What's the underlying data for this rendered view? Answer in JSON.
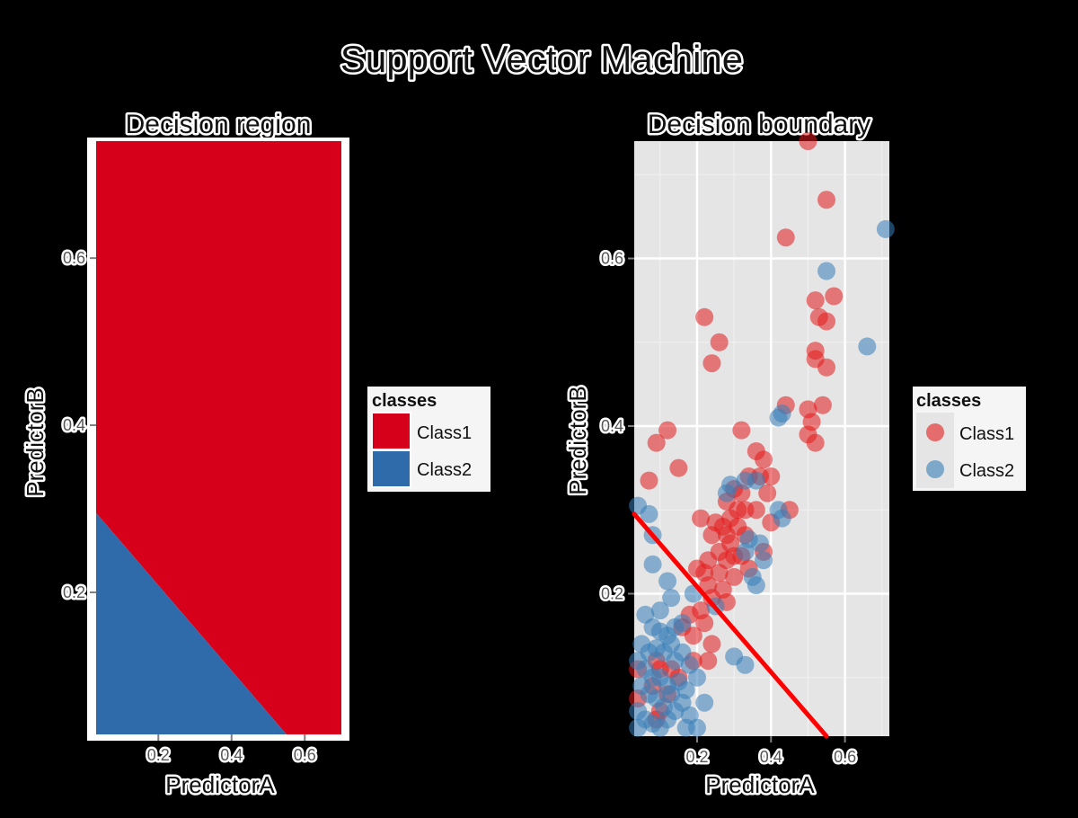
{
  "figure": {
    "title": "Support Vector Machine"
  },
  "chart_data": [
    {
      "type": "area",
      "title": "Decision region",
      "xlabel": "PredictorA",
      "ylabel": "PredictorB",
      "xlim": [
        0.03,
        0.7
      ],
      "ylim": [
        0.03,
        0.74
      ],
      "x_ticks": [
        0.2,
        0.4,
        0.6
      ],
      "y_ticks": [
        0.2,
        0.4,
        0.6
      ],
      "x_tick_labels": [
        "0.2",
        "0.4",
        "0.6"
      ],
      "y_tick_labels": [
        "0.2",
        "0.4",
        "0.6"
      ],
      "grid": false,
      "legend": {
        "title": "classes",
        "position": "right",
        "entries": [
          {
            "name": "Class1",
            "color": "#d7001b"
          },
          {
            "name": "Class2",
            "color": "#2f6aab"
          }
        ]
      },
      "regions": [
        {
          "name": "Class1",
          "color": "#d7001b",
          "polygon": [
            [
              0.03,
              0.295
            ],
            [
              0.03,
              0.74
            ],
            [
              0.7,
              0.74
            ],
            [
              0.7,
              0.03
            ],
            [
              0.55,
              0.03
            ]
          ]
        },
        {
          "name": "Class2",
          "color": "#2f6aab",
          "polygon": [
            [
              0.03,
              0.03
            ],
            [
              0.03,
              0.295
            ],
            [
              0.55,
              0.03
            ]
          ]
        }
      ]
    },
    {
      "type": "scatter",
      "title": "Decision boundary",
      "xlabel": "PredictorA",
      "ylabel": "PredictorB",
      "xlim": [
        0.03,
        0.72
      ],
      "ylim": [
        0.03,
        0.74
      ],
      "x_ticks": [
        0.2,
        0.4,
        0.6
      ],
      "y_ticks": [
        0.2,
        0.4,
        0.6
      ],
      "x_tick_labels": [
        "0.2",
        "0.4",
        "0.6"
      ],
      "y_tick_labels": [
        "0.2",
        "0.4",
        "0.6"
      ],
      "grid": true,
      "legend": {
        "title": "classes",
        "position": "right",
        "entries": [
          {
            "name": "Class1",
            "color": "#e41a1c"
          },
          {
            "name": "Class2",
            "color": "#377eb8"
          }
        ]
      },
      "boundary_line": {
        "color": "#ff0000",
        "points": [
          [
            0.03,
            0.295
          ],
          [
            0.55,
            0.03
          ]
        ]
      },
      "series": [
        {
          "name": "Class1",
          "color": "#e41a1c",
          "points": [
            [
              0.5,
              0.74
            ],
            [
              0.55,
              0.67
            ],
            [
              0.44,
              0.625
            ],
            [
              0.57,
              0.555
            ],
            [
              0.52,
              0.55
            ],
            [
              0.53,
              0.53
            ],
            [
              0.55,
              0.525
            ],
            [
              0.22,
              0.53
            ],
            [
              0.26,
              0.5
            ],
            [
              0.24,
              0.475
            ],
            [
              0.52,
              0.49
            ],
            [
              0.52,
              0.48
            ],
            [
              0.55,
              0.47
            ],
            [
              0.44,
              0.425
            ],
            [
              0.5,
              0.42
            ],
            [
              0.54,
              0.425
            ],
            [
              0.51,
              0.405
            ],
            [
              0.5,
              0.39
            ],
            [
              0.52,
              0.38
            ],
            [
              0.12,
              0.395
            ],
            [
              0.09,
              0.38
            ],
            [
              0.32,
              0.395
            ],
            [
              0.07,
              0.335
            ],
            [
              0.15,
              0.35
            ],
            [
              0.36,
              0.37
            ],
            [
              0.37,
              0.34
            ],
            [
              0.34,
              0.34
            ],
            [
              0.4,
              0.34
            ],
            [
              0.38,
              0.36
            ],
            [
              0.3,
              0.325
            ],
            [
              0.32,
              0.32
            ],
            [
              0.28,
              0.31
            ],
            [
              0.31,
              0.3
            ],
            [
              0.29,
              0.29
            ],
            [
              0.33,
              0.3
            ],
            [
              0.36,
              0.3
            ],
            [
              0.39,
              0.32
            ],
            [
              0.45,
              0.3
            ],
            [
              0.21,
              0.29
            ],
            [
              0.25,
              0.285
            ],
            [
              0.27,
              0.28
            ],
            [
              0.31,
              0.28
            ],
            [
              0.24,
              0.27
            ],
            [
              0.28,
              0.27
            ],
            [
              0.33,
              0.27
            ],
            [
              0.4,
              0.285
            ],
            [
              0.29,
              0.26
            ],
            [
              0.26,
              0.25
            ],
            [
              0.3,
              0.245
            ],
            [
              0.23,
              0.24
            ],
            [
              0.28,
              0.24
            ],
            [
              0.32,
              0.245
            ],
            [
              0.38,
              0.25
            ],
            [
              0.2,
              0.23
            ],
            [
              0.22,
              0.225
            ],
            [
              0.26,
              0.225
            ],
            [
              0.3,
              0.22
            ],
            [
              0.34,
              0.23
            ],
            [
              0.23,
              0.21
            ],
            [
              0.27,
              0.205
            ],
            [
              0.24,
              0.195
            ],
            [
              0.28,
              0.19
            ],
            [
              0.21,
              0.18
            ],
            [
              0.18,
              0.175
            ],
            [
              0.22,
              0.165
            ],
            [
              0.16,
              0.16
            ],
            [
              0.19,
              0.15
            ],
            [
              0.24,
              0.14
            ],
            [
              0.09,
              0.12
            ],
            [
              0.1,
              0.11
            ],
            [
              0.13,
              0.11
            ],
            [
              0.04,
              0.11
            ],
            [
              0.15,
              0.1
            ],
            [
              0.08,
              0.09
            ],
            [
              0.12,
              0.08
            ],
            [
              0.04,
              0.075
            ],
            [
              0.1,
              0.06
            ],
            [
              0.09,
              0.05
            ],
            [
              0.23,
              0.12
            ],
            [
              0.19,
              0.12
            ]
          ]
        },
        {
          "name": "Class2",
          "color": "#377eb8",
          "points": [
            [
              0.71,
              0.635
            ],
            [
              0.55,
              0.585
            ],
            [
              0.66,
              0.495
            ],
            [
              0.43,
              0.415
            ],
            [
              0.42,
              0.41
            ],
            [
              0.33,
              0.335
            ],
            [
              0.29,
              0.33
            ],
            [
              0.28,
              0.32
            ],
            [
              0.36,
              0.335
            ],
            [
              0.04,
              0.305
            ],
            [
              0.07,
              0.295
            ],
            [
              0.08,
              0.27
            ],
            [
              0.42,
              0.3
            ],
            [
              0.43,
              0.29
            ],
            [
              0.34,
              0.265
            ],
            [
              0.37,
              0.26
            ],
            [
              0.33,
              0.25
            ],
            [
              0.38,
              0.24
            ],
            [
              0.35,
              0.22
            ],
            [
              0.36,
              0.21
            ],
            [
              0.08,
              0.235
            ],
            [
              0.12,
              0.215
            ],
            [
              0.13,
              0.195
            ],
            [
              0.19,
              0.2
            ],
            [
              0.25,
              0.185
            ],
            [
              0.1,
              0.18
            ],
            [
              0.06,
              0.175
            ],
            [
              0.08,
              0.16
            ],
            [
              0.1,
              0.155
            ],
            [
              0.12,
              0.15
            ],
            [
              0.14,
              0.16
            ],
            [
              0.16,
              0.165
            ],
            [
              0.05,
              0.14
            ],
            [
              0.07,
              0.13
            ],
            [
              0.09,
              0.135
            ],
            [
              0.11,
              0.13
            ],
            [
              0.13,
              0.14
            ],
            [
              0.04,
              0.12
            ],
            [
              0.06,
              0.11
            ],
            [
              0.08,
              0.1
            ],
            [
              0.1,
              0.1
            ],
            [
              0.12,
              0.09
            ],
            [
              0.14,
              0.12
            ],
            [
              0.16,
              0.13
            ],
            [
              0.18,
              0.115
            ],
            [
              0.2,
              0.1
            ],
            [
              0.05,
              0.09
            ],
            [
              0.07,
              0.08
            ],
            [
              0.09,
              0.075
            ],
            [
              0.11,
              0.065
            ],
            [
              0.13,
              0.08
            ],
            [
              0.15,
              0.095
            ],
            [
              0.17,
              0.085
            ],
            [
              0.04,
              0.06
            ],
            [
              0.06,
              0.05
            ],
            [
              0.08,
              0.045
            ],
            [
              0.1,
              0.04
            ],
            [
              0.12,
              0.05
            ],
            [
              0.14,
              0.06
            ],
            [
              0.16,
              0.07
            ],
            [
              0.18,
              0.055
            ],
            [
              0.2,
              0.04
            ],
            [
              0.04,
              0.04
            ],
            [
              0.17,
              0.04
            ],
            [
              0.3,
              0.125
            ],
            [
              0.33,
              0.115
            ],
            [
              0.22,
              0.07
            ]
          ]
        }
      ]
    }
  ]
}
